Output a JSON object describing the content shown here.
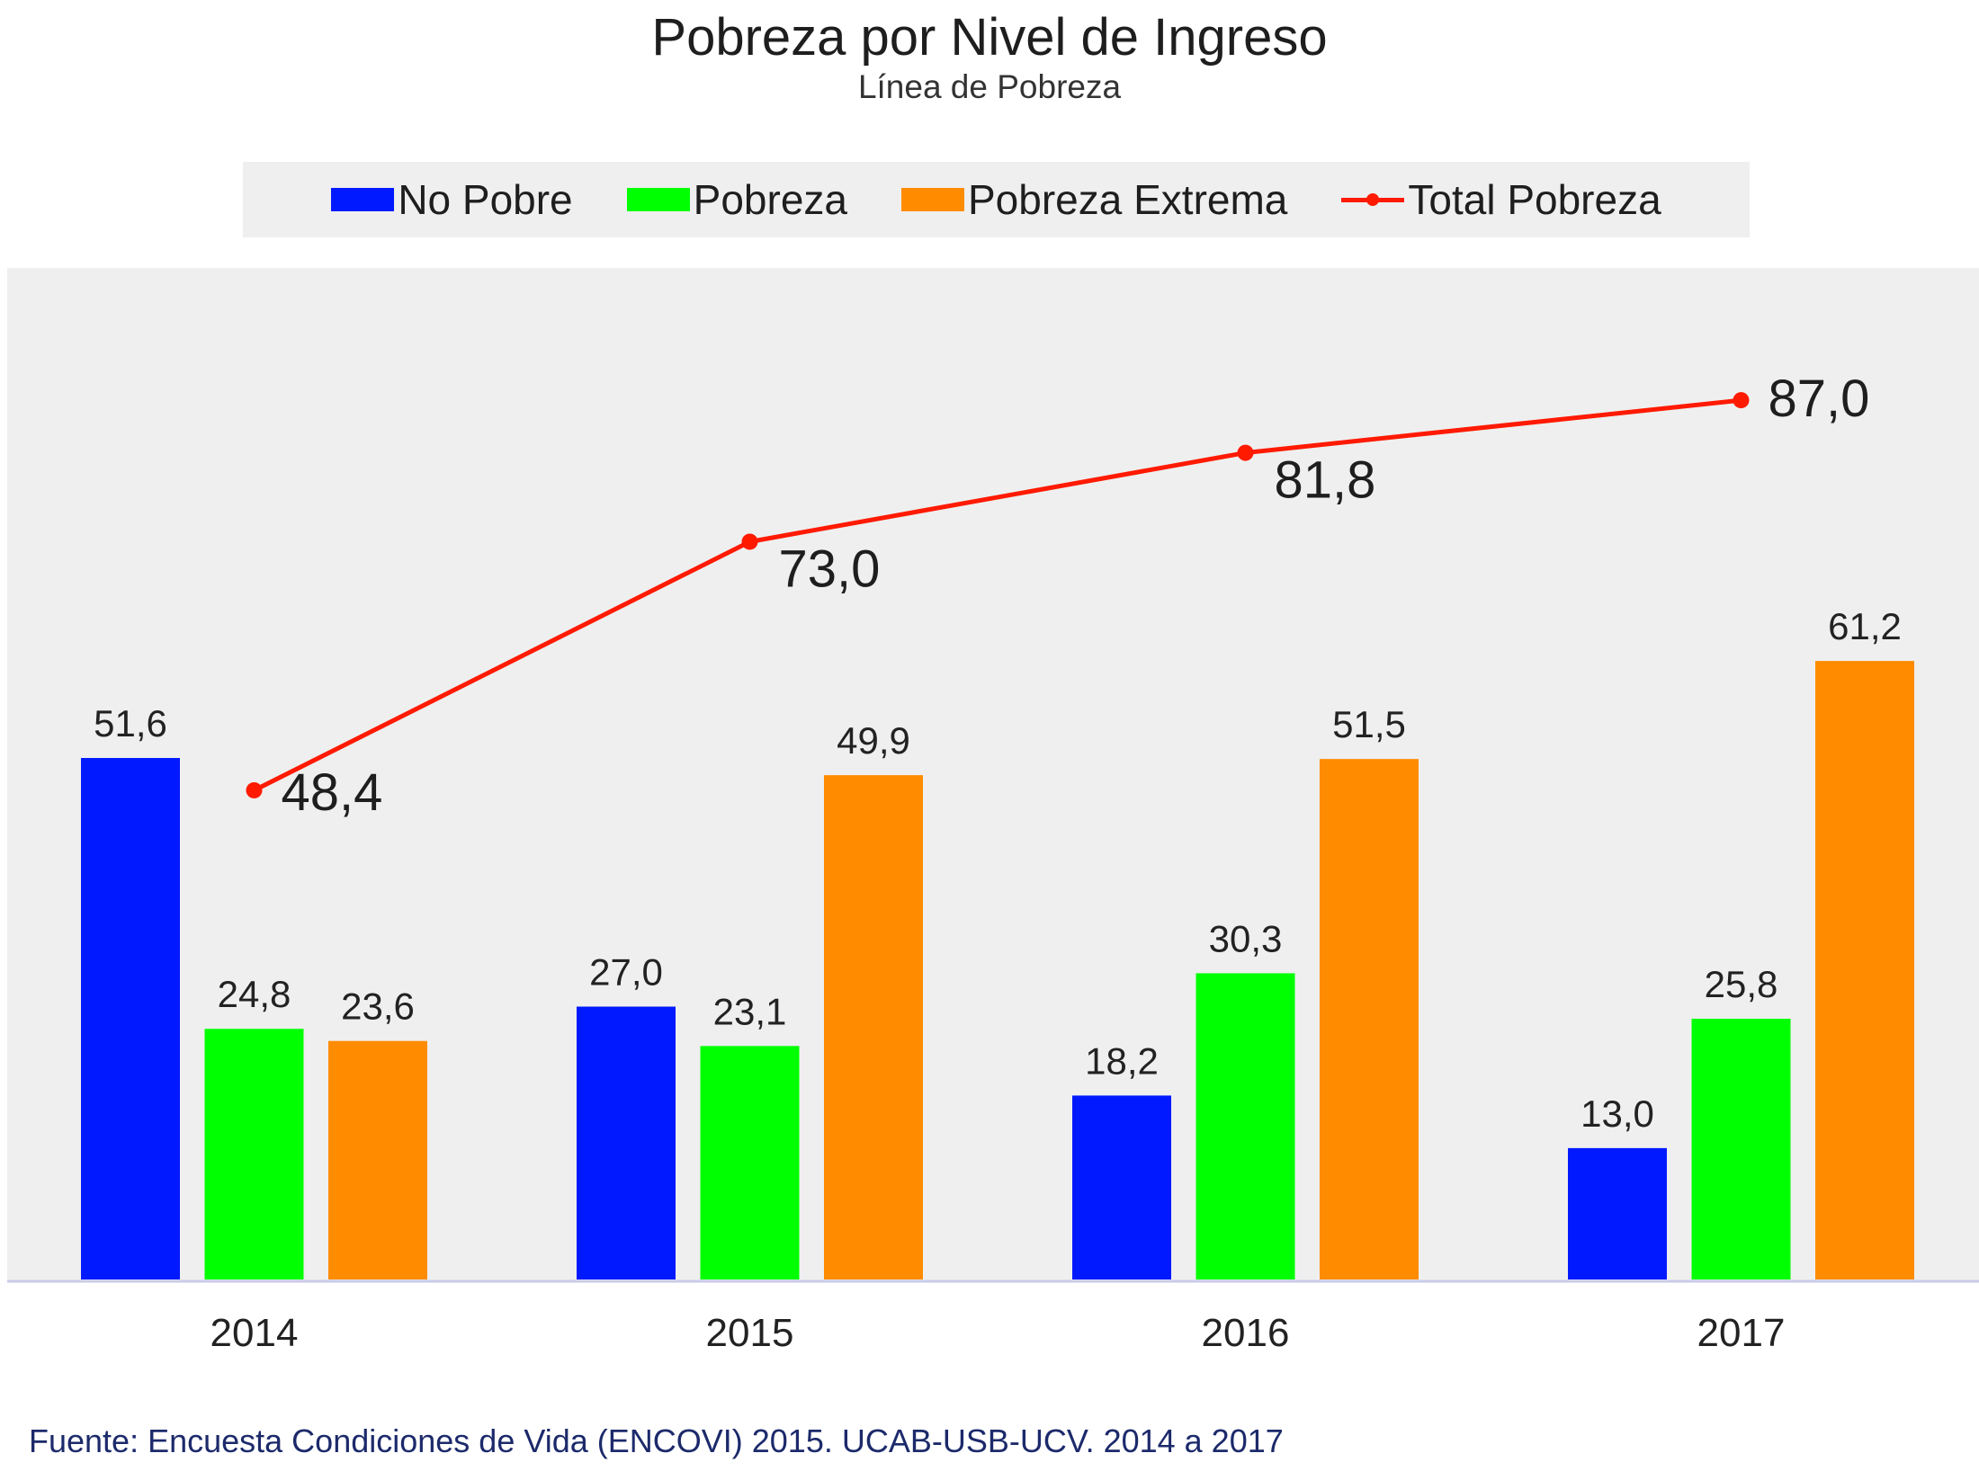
{
  "chart_data": {
    "type": "bar",
    "title": "Pobreza por Nivel de Ingreso",
    "subtitle": "Línea de Pobreza",
    "xlabel": "",
    "ylabel": "",
    "ylim": [
      0,
      100
    ],
    "grid": false,
    "legend_position": "top-center",
    "categories": [
      "2014",
      "2015",
      "2016",
      "2017"
    ],
    "series": [
      {
        "name": "No Pobre",
        "type": "bar",
        "color": "#0019ff",
        "values": [
          51.6,
          27.0,
          18.2,
          13.0
        ],
        "labels": [
          "51,6",
          "27,0",
          "18,2",
          "13,0"
        ]
      },
      {
        "name": "Pobreza",
        "type": "bar",
        "color": "#00ff00",
        "values": [
          24.8,
          23.1,
          30.3,
          25.8
        ],
        "labels": [
          "24,8",
          "23,1",
          "30,3",
          "25,8"
        ]
      },
      {
        "name": "Pobreza Extrema",
        "type": "bar",
        "color": "#ff8c00",
        "values": [
          23.6,
          49.9,
          51.5,
          61.2
        ],
        "labels": [
          "23,6",
          "49,9",
          "51,5",
          "61,2"
        ]
      },
      {
        "name": "Total Pobreza",
        "type": "line",
        "color": "#ff1a00",
        "values": [
          48.4,
          73.0,
          81.8,
          87.0
        ],
        "labels": [
          "48,4",
          "73,0",
          "81,8",
          "87,0"
        ]
      }
    ],
    "source": "Fuente: Encuesta Condiciones de Vida (ENCOVI) 2015. UCAB-USB-UCV. 2014 a 2017"
  }
}
